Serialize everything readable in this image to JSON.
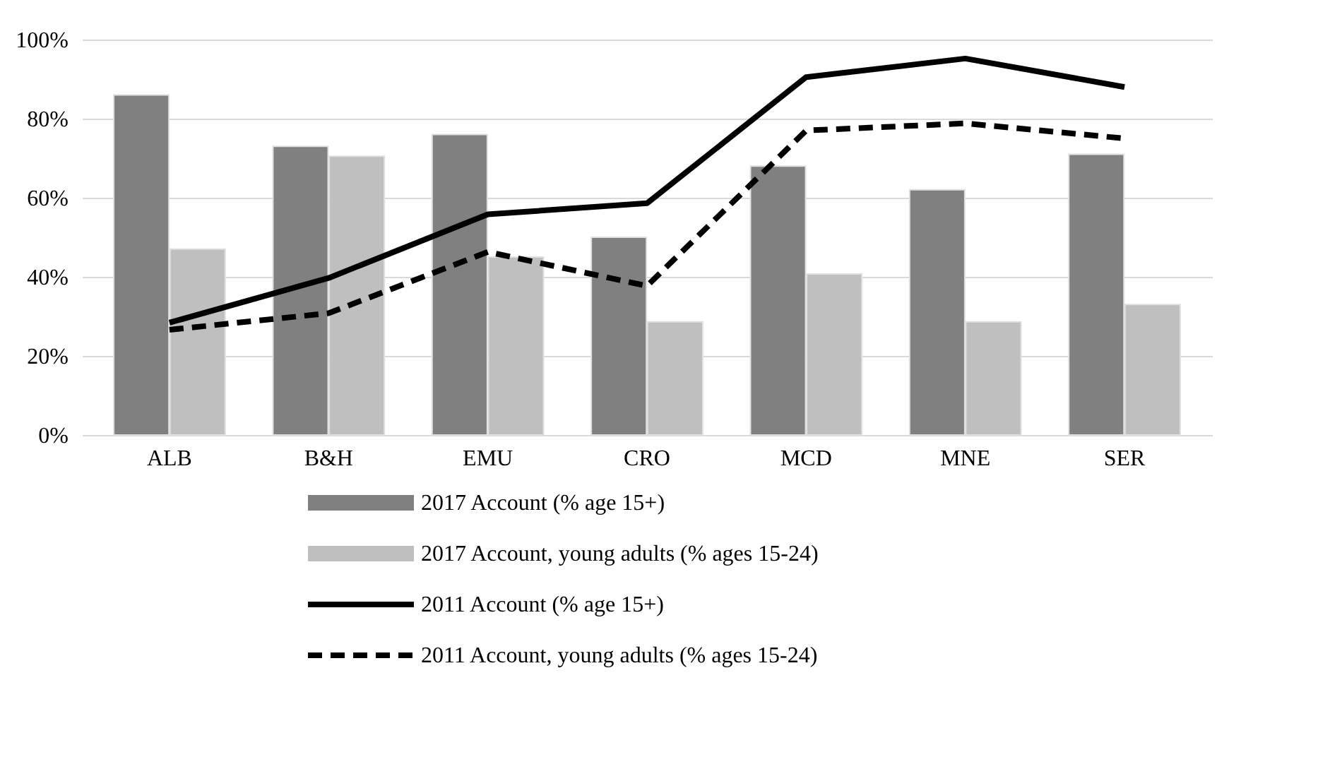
{
  "chart_data": {
    "type": "bar",
    "categories": [
      "ALB",
      "B&H",
      "EMU",
      "CRO",
      "MCD",
      "MNE",
      "SER"
    ],
    "series": [
      {
        "name": "2017 Account (% age 15+)",
        "color": "#808080",
        "values": [
          86,
          73,
          76,
          50,
          68,
          62,
          71
        ]
      },
      {
        "name": "2017 Account, young adults (% ages 15-24)",
        "color": "#bfbfbf",
        "values": [
          47,
          70.5,
          45,
          28.6,
          40.7,
          28.6,
          33
        ]
      },
      {
        "name": "2011 Account (% age 15+)",
        "type": "line",
        "color": "#000000",
        "line_style": "solid",
        "values": [
          28.4,
          39.7,
          55.8,
          58.6,
          90.5,
          95.2,
          88
        ]
      },
      {
        "name": "2011 Account, young adults (% ages 15-24)",
        "type": "line",
        "color": "#000000",
        "line_style": "dashed",
        "values": [
          26.6,
          30.8,
          46.3,
          37.7,
          77,
          78.8,
          75
        ]
      }
    ],
    "ylim": [
      0,
      100
    ],
    "yticks": [
      {
        "value": 0,
        "label": "0%"
      },
      {
        "value": 20,
        "label": "20%"
      },
      {
        "value": 40,
        "label": "40%"
      },
      {
        "value": 60,
        "label": "60%"
      },
      {
        "value": 80,
        "label": "80%"
      },
      {
        "value": 100,
        "label": "100%"
      }
    ],
    "grid": "y",
    "legend": "bottom",
    "marker": "none"
  }
}
